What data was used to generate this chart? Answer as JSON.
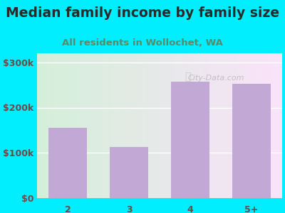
{
  "title": "Median family income by family size",
  "subtitle": "All residents in Wollochet, WA",
  "categories": [
    "2",
    "3",
    "4",
    "5+"
  ],
  "values": [
    155000,
    113000,
    258000,
    253000
  ],
  "bar_color": "#c2a8d5",
  "background_outer": "#00eeff",
  "title_color": "#2a2a2a",
  "subtitle_color": "#5a8a6a",
  "tick_label_color": "#6a4a4a",
  "ylim": [
    0,
    320000
  ],
  "yticks": [
    0,
    100000,
    200000,
    300000
  ],
  "ytick_labels": [
    "$0",
    "$100k",
    "$200k",
    "$300k"
  ],
  "watermark": "City-Data.com",
  "title_fontsize": 13.5,
  "subtitle_fontsize": 9.5,
  "tick_fontsize": 9,
  "bar_width": 0.62
}
